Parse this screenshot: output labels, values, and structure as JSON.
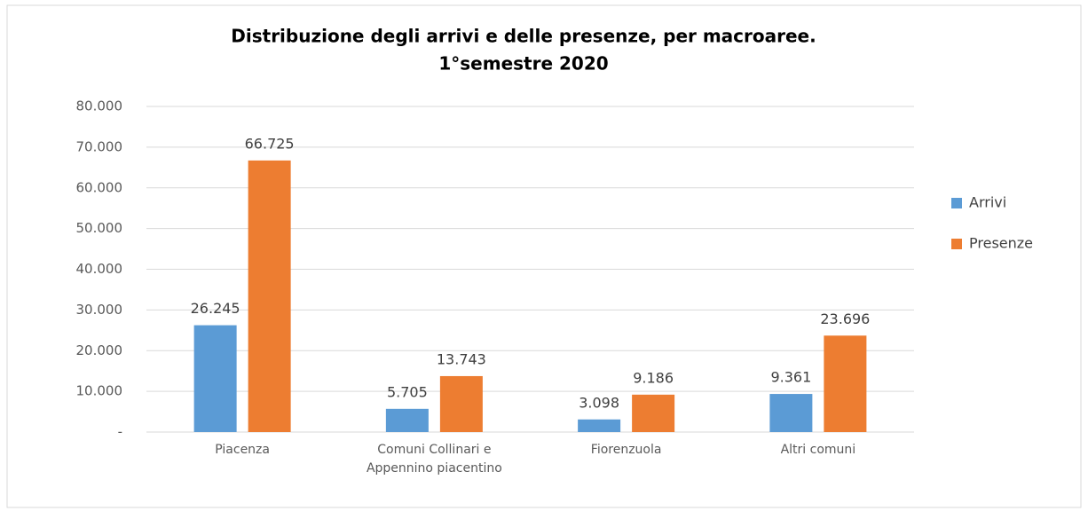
{
  "chart_data": {
    "type": "bar",
    "title": [
      "Distribuzione degli arrivi e delle presenze, per macroaree.",
      "1°semestre 2020"
    ],
    "categories": [
      [
        "Piacenza"
      ],
      [
        "Comuni Collinari e",
        "Appennino piacentino"
      ],
      [
        "Fiorenzuola"
      ],
      [
        "Altri comuni"
      ]
    ],
    "series": [
      {
        "name": "Arrivi",
        "color": "#5b9bd5",
        "values": [
          26245,
          5705,
          3098,
          9361
        ],
        "value_labels": [
          "26.245",
          "5.705",
          "3.098",
          "9.361"
        ]
      },
      {
        "name": "Presenze",
        "color": "#ed7d31",
        "values": [
          66725,
          13743,
          9186,
          23696
        ],
        "value_labels": [
          "66.725",
          "13.743",
          "9.186",
          "23.696"
        ]
      }
    ],
    "ylim": [
      0,
      80000
    ],
    "yticks": [
      {
        "value": 0,
        "label": "-"
      },
      {
        "value": 10000,
        "label": "10.000"
      },
      {
        "value": 20000,
        "label": "20.000"
      },
      {
        "value": 30000,
        "label": "30.000"
      },
      {
        "value": 40000,
        "label": "40.000"
      },
      {
        "value": 50000,
        "label": "50.000"
      },
      {
        "value": 60000,
        "label": "60.000"
      },
      {
        "value": 70000,
        "label": "70.000"
      },
      {
        "value": 80000,
        "label": "80.000"
      }
    ],
    "grid": true,
    "legend": "right"
  }
}
